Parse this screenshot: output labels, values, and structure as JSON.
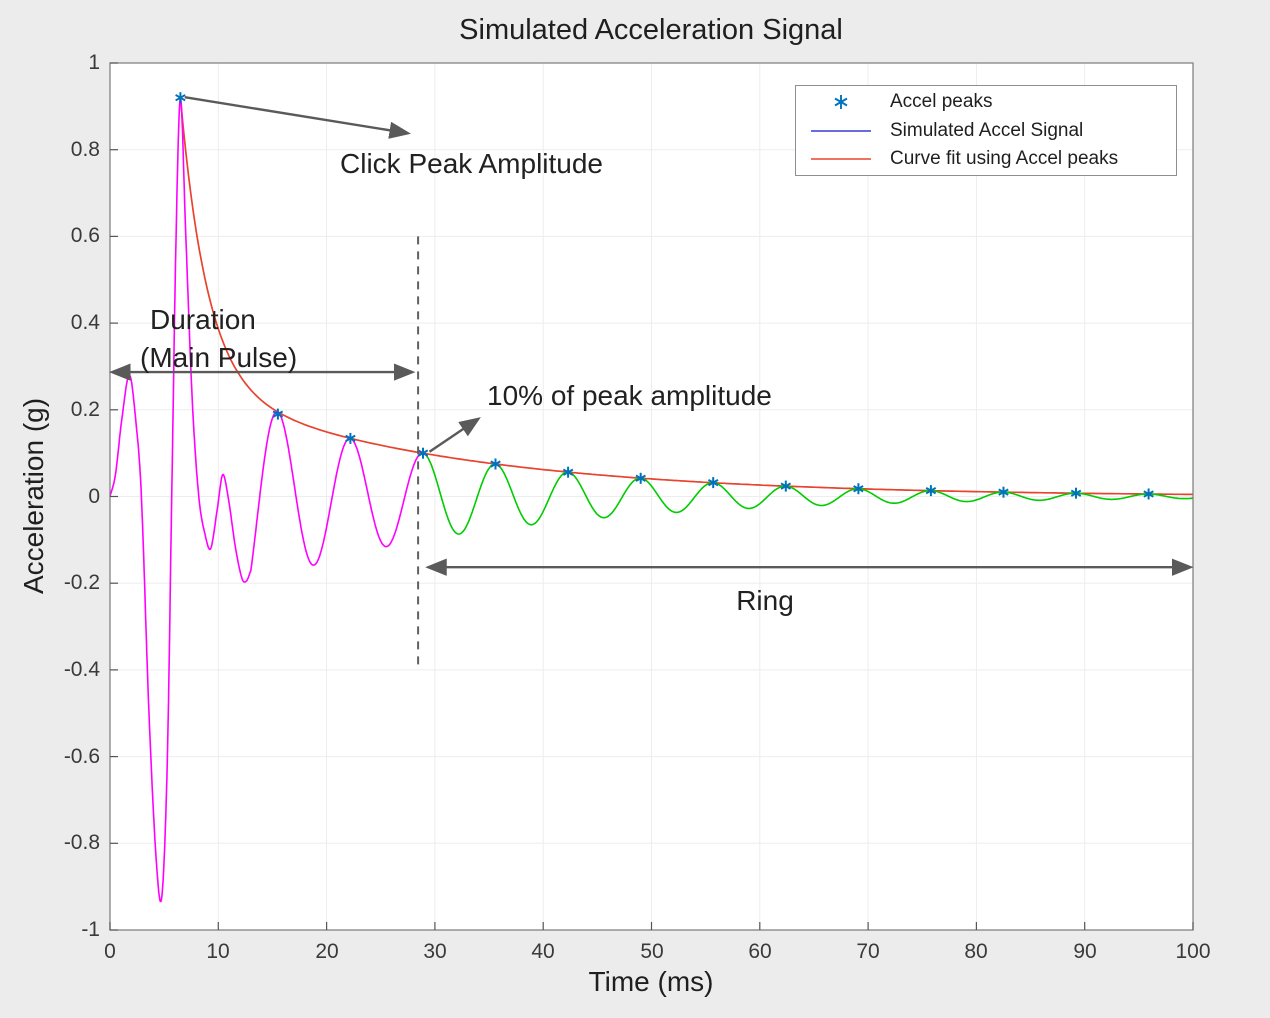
{
  "figure": {
    "background_color": "#ececec",
    "plot_background_color": "#ffffff"
  },
  "chart_data": {
    "type": "line",
    "title": "Simulated Acceleration Signal",
    "xlabel": "Time (ms)",
    "ylabel": "Acceleration (g)",
    "xlim": [
      0,
      100
    ],
    "ylim": [
      -1,
      1
    ],
    "x_ticks": [
      0,
      10,
      20,
      30,
      40,
      50,
      60,
      70,
      80,
      90,
      100
    ],
    "x_tick_labels": [
      "0",
      "10",
      "20",
      "30",
      "40",
      "50",
      "60",
      "70",
      "80",
      "90",
      "100"
    ],
    "y_ticks": [
      -1,
      -0.8,
      -0.6,
      -0.4,
      -0.2,
      0,
      0.2,
      0.4,
      0.6,
      0.8,
      1
    ],
    "y_tick_labels": [
      "-1",
      "-0.8",
      "-0.6",
      "-0.4",
      "-0.2",
      "0",
      "0.2",
      "0.4",
      "0.6",
      "0.8",
      "1"
    ],
    "grid": true,
    "legend_position": "top-right",
    "colors": {
      "main_pulse_segment": "#ff00ff",
      "ring_segment": "#00cc00",
      "curve_fit": "#e8432e",
      "accel_peaks": "#0072bd",
      "legend_signal_line": "#3a3ad6",
      "annotation_gray": "#5a5a5a",
      "dashed_line": "#606060",
      "grid_line": "#ededed",
      "axis_box": "#7a7a7a",
      "tick_mark": "#555555",
      "text": "#212121"
    },
    "series": [
      {
        "name": "Accel peaks",
        "type": "scatter",
        "marker": "asterisk",
        "color": "#0072bd",
        "points": [
          [
            6.5,
            0.92
          ],
          [
            15.5,
            0.19
          ],
          [
            22.2,
            0.134
          ],
          [
            28.9,
            0.1
          ],
          [
            35.6,
            0.075
          ],
          [
            42.3,
            0.056
          ],
          [
            49,
            0.042
          ],
          [
            55.7,
            0.032
          ],
          [
            62.4,
            0.024
          ],
          [
            69.1,
            0.018
          ],
          [
            75.8,
            0.0135
          ],
          [
            82.5,
            0.01
          ],
          [
            89.2,
            0.0076
          ],
          [
            95.9,
            0.0057
          ]
        ]
      },
      {
        "name": "Simulated Accel Signal",
        "type": "line",
        "legend_color": "#3a3ad6",
        "segments": [
          {
            "label": "main pulse",
            "color": "#ff00ff",
            "t_range": [
              0,
              28.9
            ]
          },
          {
            "label": "ring",
            "color": "#00cc00",
            "t_range": [
              28.9,
              100
            ]
          }
        ],
        "model": {
          "transient_keypoints": [
            [
              0,
              0
            ],
            [
              0.5,
              0.05
            ],
            [
              1.1,
              0.18
            ],
            [
              1.8,
              0.28
            ],
            [
              2.4,
              0.17
            ],
            [
              2.9,
              0
            ],
            [
              3.6,
              -0.5
            ],
            [
              4.3,
              -0.85
            ],
            [
              4.8,
              -0.92
            ],
            [
              5.3,
              -0.6
            ],
            [
              5.7,
              0
            ],
            [
              6.1,
              0.6
            ],
            [
              6.5,
              0.92
            ],
            [
              7,
              0.6
            ],
            [
              7.6,
              0.22
            ],
            [
              8.2,
              0
            ],
            [
              8.8,
              -0.09
            ],
            [
              9.3,
              -0.12
            ],
            [
              9.9,
              -0.03
            ],
            [
              10.4,
              0.05
            ],
            [
              10.9,
              0
            ],
            [
              11.6,
              -0.12
            ],
            [
              12.2,
              -0.19
            ],
            [
              12.6,
              -0.195
            ],
            [
              13,
              -0.171
            ]
          ],
          "transient_end": 13,
          "oscillation": {
            "period": 6.7,
            "phase_peak_t": 15.5
          },
          "envelope": {
            "A1": 0.66,
            "tau1": 2.5,
            "A2": 0.26,
            "tau2": 23.4,
            "t0": 6.5
          },
          "color_switch_t": 28.9
        }
      },
      {
        "name": "Curve fit using Accel peaks",
        "type": "line",
        "color": "#e8432e",
        "model": {
          "form": "A1*exp(-(t-t0)/tau1) + A2*exp(-(t-t0)/tau2)",
          "A1": 0.66,
          "tau1": 2.5,
          "A2": 0.26,
          "tau2": 23.4,
          "t0": 6.5,
          "t_range": [
            6.5,
            100
          ]
        }
      }
    ],
    "annotations": [
      {
        "id": "click-peak-amplitude",
        "text": "Click Peak Amplitude",
        "text_pos": [
          21.2,
          0.806
        ],
        "anchor": "top-left",
        "arrow": {
          "from": [
            6.9,
            0.921
          ],
          "to": [
            27.5,
            0.838
          ],
          "heads": "end"
        }
      },
      {
        "id": "duration-main-pulse",
        "text_lines": [
          "Duration",
          "(Main Pulse)"
        ],
        "line1_pos": [
          3.7,
          0.446
        ],
        "line2_pos": [
          2.77,
          0.359
        ],
        "arrow": {
          "from": [
            0.2,
            0.287
          ],
          "to": [
            27.9,
            0.287
          ],
          "heads": "both"
        }
      },
      {
        "id": "duration-threshold-line",
        "style": "dashed-vertical",
        "x": 28.45,
        "y_range": [
          -0.4,
          0.6
        ]
      },
      {
        "id": "ten-percent-of-peak",
        "text": "10% of peak amplitude",
        "text_pos": [
          34.8,
          0.271
        ],
        "anchor": "top-left",
        "arrow": {
          "from": [
            29.5,
            0.103
          ],
          "to": [
            34,
            0.179
          ],
          "heads": "end"
        }
      },
      {
        "id": "ring",
        "text": "Ring",
        "text_pos": [
          60.5,
          -0.202
        ],
        "anchor": "top-center",
        "arrow": {
          "from": [
            29.4,
            -0.163
          ],
          "to": [
            99.75,
            -0.163
          ],
          "heads": "both"
        }
      }
    ]
  }
}
